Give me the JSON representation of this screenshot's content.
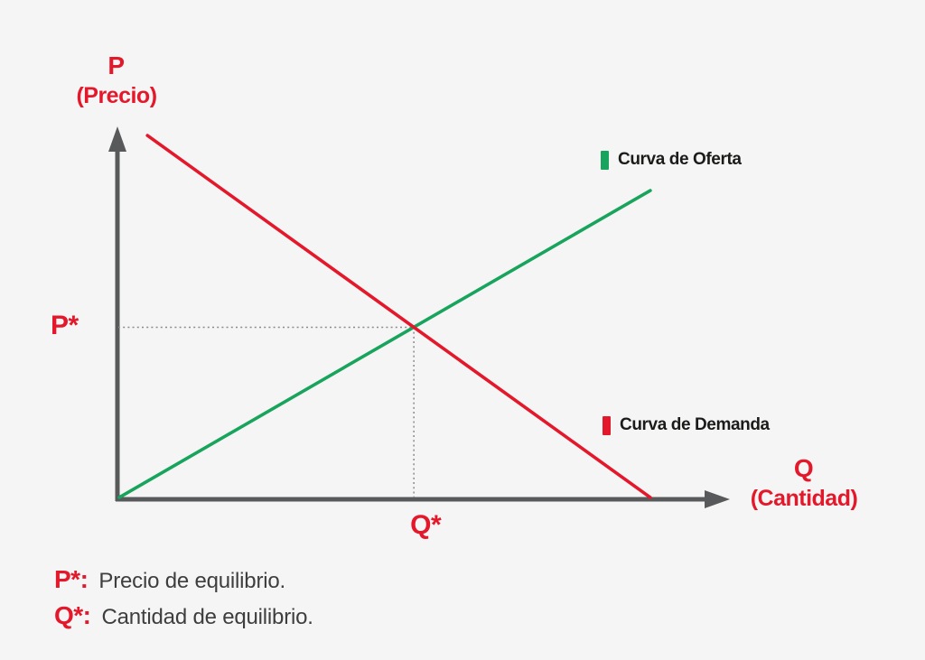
{
  "palette": {
    "background": "#f4f5f4",
    "red": "#e4182b",
    "green": "#18a45c",
    "axis": "#58595b",
    "legend_text": "#1b1b1a",
    "footnote_text": "#3e3e3e",
    "guide": "#8a8a8a"
  },
  "axis_titles": {
    "y_symbol": "P",
    "y_name": "(Precio)",
    "x_symbol": "Q",
    "x_name": "(Cantidad)"
  },
  "equilibrium_labels": {
    "price": "P*",
    "quantity": "Q*"
  },
  "legend": {
    "supply": {
      "label": "Curva de Oferta",
      "color": "#18a45c"
    },
    "demand": {
      "label": "Curva de Demanda",
      "color": "#e4182b"
    }
  },
  "footnotes": [
    {
      "term": "P*:",
      "text": "Precio de equilibrio."
    },
    {
      "term": "Q*:",
      "text": "Cantidad de equilibrio."
    }
  ],
  "chart_data": {
    "type": "line",
    "title": "",
    "xlabel": "Q (Cantidad)",
    "ylabel": "P (Precio)",
    "grid": false,
    "numeric_scale_shown": false,
    "coordinate_units": "fraction of the plot area measured from the axes origin (0-1)",
    "series": [
      {
        "name": "Curva de Oferta",
        "role": "supply",
        "color": "#18a45c",
        "points": [
          [
            0.003,
            0.005
          ],
          [
            0.87,
            0.83
          ]
        ]
      },
      {
        "name": "Curva de Demanda",
        "role": "demand",
        "color": "#e4182b",
        "points": [
          [
            0.049,
            0.978
          ],
          [
            0.87,
            0.005
          ]
        ]
      }
    ],
    "equilibrium": {
      "x": 0.484,
      "y": 0.4625,
      "x_label": "Q*",
      "y_label": "P*",
      "guide_style": "dotted"
    },
    "legend_position": "inline-near-curves",
    "annotations": [
      "P*: Precio de equilibrio.",
      "Q*: Cantidad de equilibrio."
    ]
  }
}
